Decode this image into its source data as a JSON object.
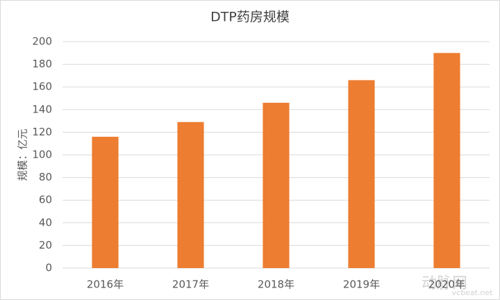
{
  "chart_data": {
    "type": "bar",
    "title": "DTP药房规模",
    "y_label": "规模：亿元",
    "categories": [
      "2016年",
      "2017年",
      "2018年",
      "2019年",
      "2020年"
    ],
    "values": [
      116,
      129,
      146,
      166,
      190
    ],
    "color": "#ed7d31",
    "ylim": [
      0,
      200
    ],
    "yticks": [
      0,
      20,
      40,
      60,
      80,
      100,
      120,
      140,
      160,
      180,
      200
    ],
    "grid": true,
    "watermark": [
      "动脉网",
      "vcbeat.net"
    ]
  }
}
